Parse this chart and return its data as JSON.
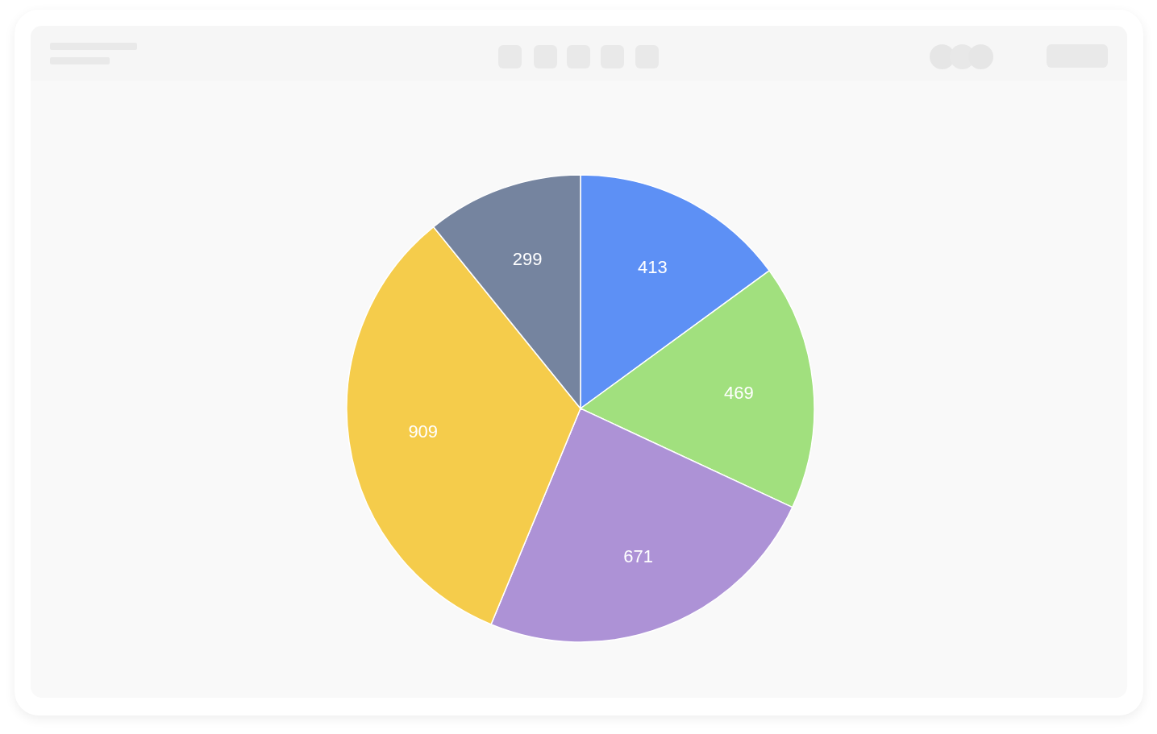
{
  "chart_data": {
    "type": "pie",
    "categories": [
      null,
      null,
      null,
      null,
      null
    ],
    "values": [
      413,
      469,
      671,
      909,
      299
    ],
    "colors": [
      "#5d90f5",
      "#a1e07e",
      "#ad92d6",
      "#f5cc4b",
      "#75849f"
    ],
    "data_labels": true
  }
}
